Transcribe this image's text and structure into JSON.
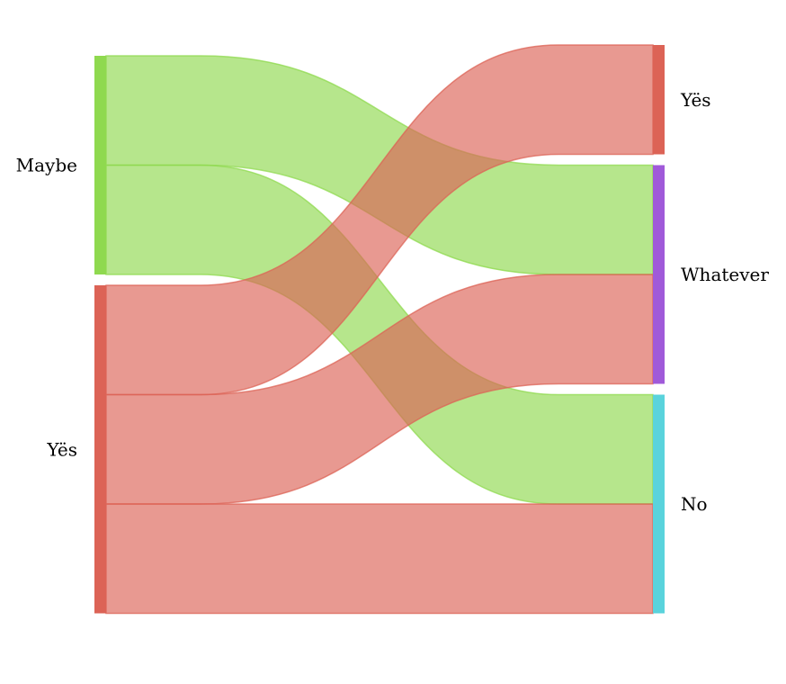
{
  "chart_data": {
    "type": "sankey",
    "title": "",
    "source_nodes": [
      {
        "id": "maybe",
        "label": "Maybe",
        "color": "#8fd94f"
      },
      {
        "id": "yes_src",
        "label": "Yës",
        "color": "#dc6356"
      }
    ],
    "target_nodes": [
      {
        "id": "yes_tgt",
        "label": "Yës",
        "color": "#dc6356"
      },
      {
        "id": "whatever",
        "label": "Whatever",
        "color": "#a05ad9"
      },
      {
        "id": "no",
        "label": "No",
        "color": "#5ad3dc"
      }
    ],
    "links": [
      {
        "source": "maybe",
        "target": "whatever",
        "value": 1
      },
      {
        "source": "maybe",
        "target": "no",
        "value": 1
      },
      {
        "source": "yes_src",
        "target": "yes_tgt",
        "value": 1
      },
      {
        "source": "yes_src",
        "target": "whatever",
        "value": 1
      },
      {
        "source": "yes_src",
        "target": "no",
        "value": 1
      }
    ],
    "link_colors": {
      "maybe": "#8fd94f",
      "yes_src": "#dc6356"
    }
  }
}
